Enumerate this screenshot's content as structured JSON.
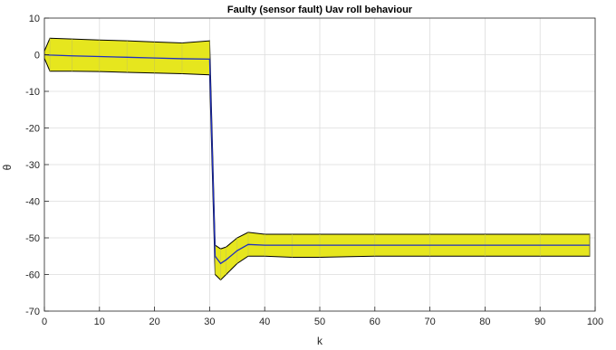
{
  "chart_data": {
    "type": "area",
    "title": "Faulty (sensor fault) Uav roll behaviour",
    "xlabel": "k",
    "ylabel": "θ",
    "xlim": [
      0,
      100
    ],
    "ylim": [
      -70,
      10
    ],
    "xticks": [
      0,
      10,
      20,
      30,
      40,
      50,
      60,
      70,
      80,
      90,
      100
    ],
    "yticks": [
      10,
      0,
      -10,
      -20,
      -30,
      -40,
      -50,
      -60,
      -70
    ],
    "grid": true,
    "colors": {
      "band_fill": "#e6e61e",
      "band_edge": "#000000",
      "line": "#1f2fbf",
      "grid": "#dcdcdc"
    },
    "series": [
      {
        "x": [
          0,
          1,
          5,
          10,
          15,
          20,
          25,
          30,
          31,
          32,
          33,
          35,
          37,
          40,
          45,
          50,
          60,
          70,
          80,
          90,
          99
        ],
        "upper": [
          1,
          4.5,
          4.3,
          4,
          3.8,
          3.5,
          3.2,
          3.8,
          -52,
          -53,
          -52.5,
          -50,
          -48.5,
          -49,
          -49,
          -49,
          -49,
          -49,
          -49,
          -49,
          -49
        ],
        "center": [
          0,
          -0.1,
          -0.3,
          -0.5,
          -0.7,
          -0.9,
          -1.1,
          -1.2,
          -55,
          -57,
          -56,
          -53.5,
          -51.8,
          -52,
          -52,
          -52,
          -52,
          -52,
          -52,
          -52,
          -52
        ],
        "lower": [
          -1,
          -4.5,
          -4.5,
          -4.6,
          -4.8,
          -5,
          -5.2,
          -5.5,
          -60,
          -61.5,
          -60,
          -57,
          -55,
          -55,
          -55.3,
          -55.3,
          -55,
          -55,
          -55,
          -55,
          -55
        ]
      }
    ]
  }
}
